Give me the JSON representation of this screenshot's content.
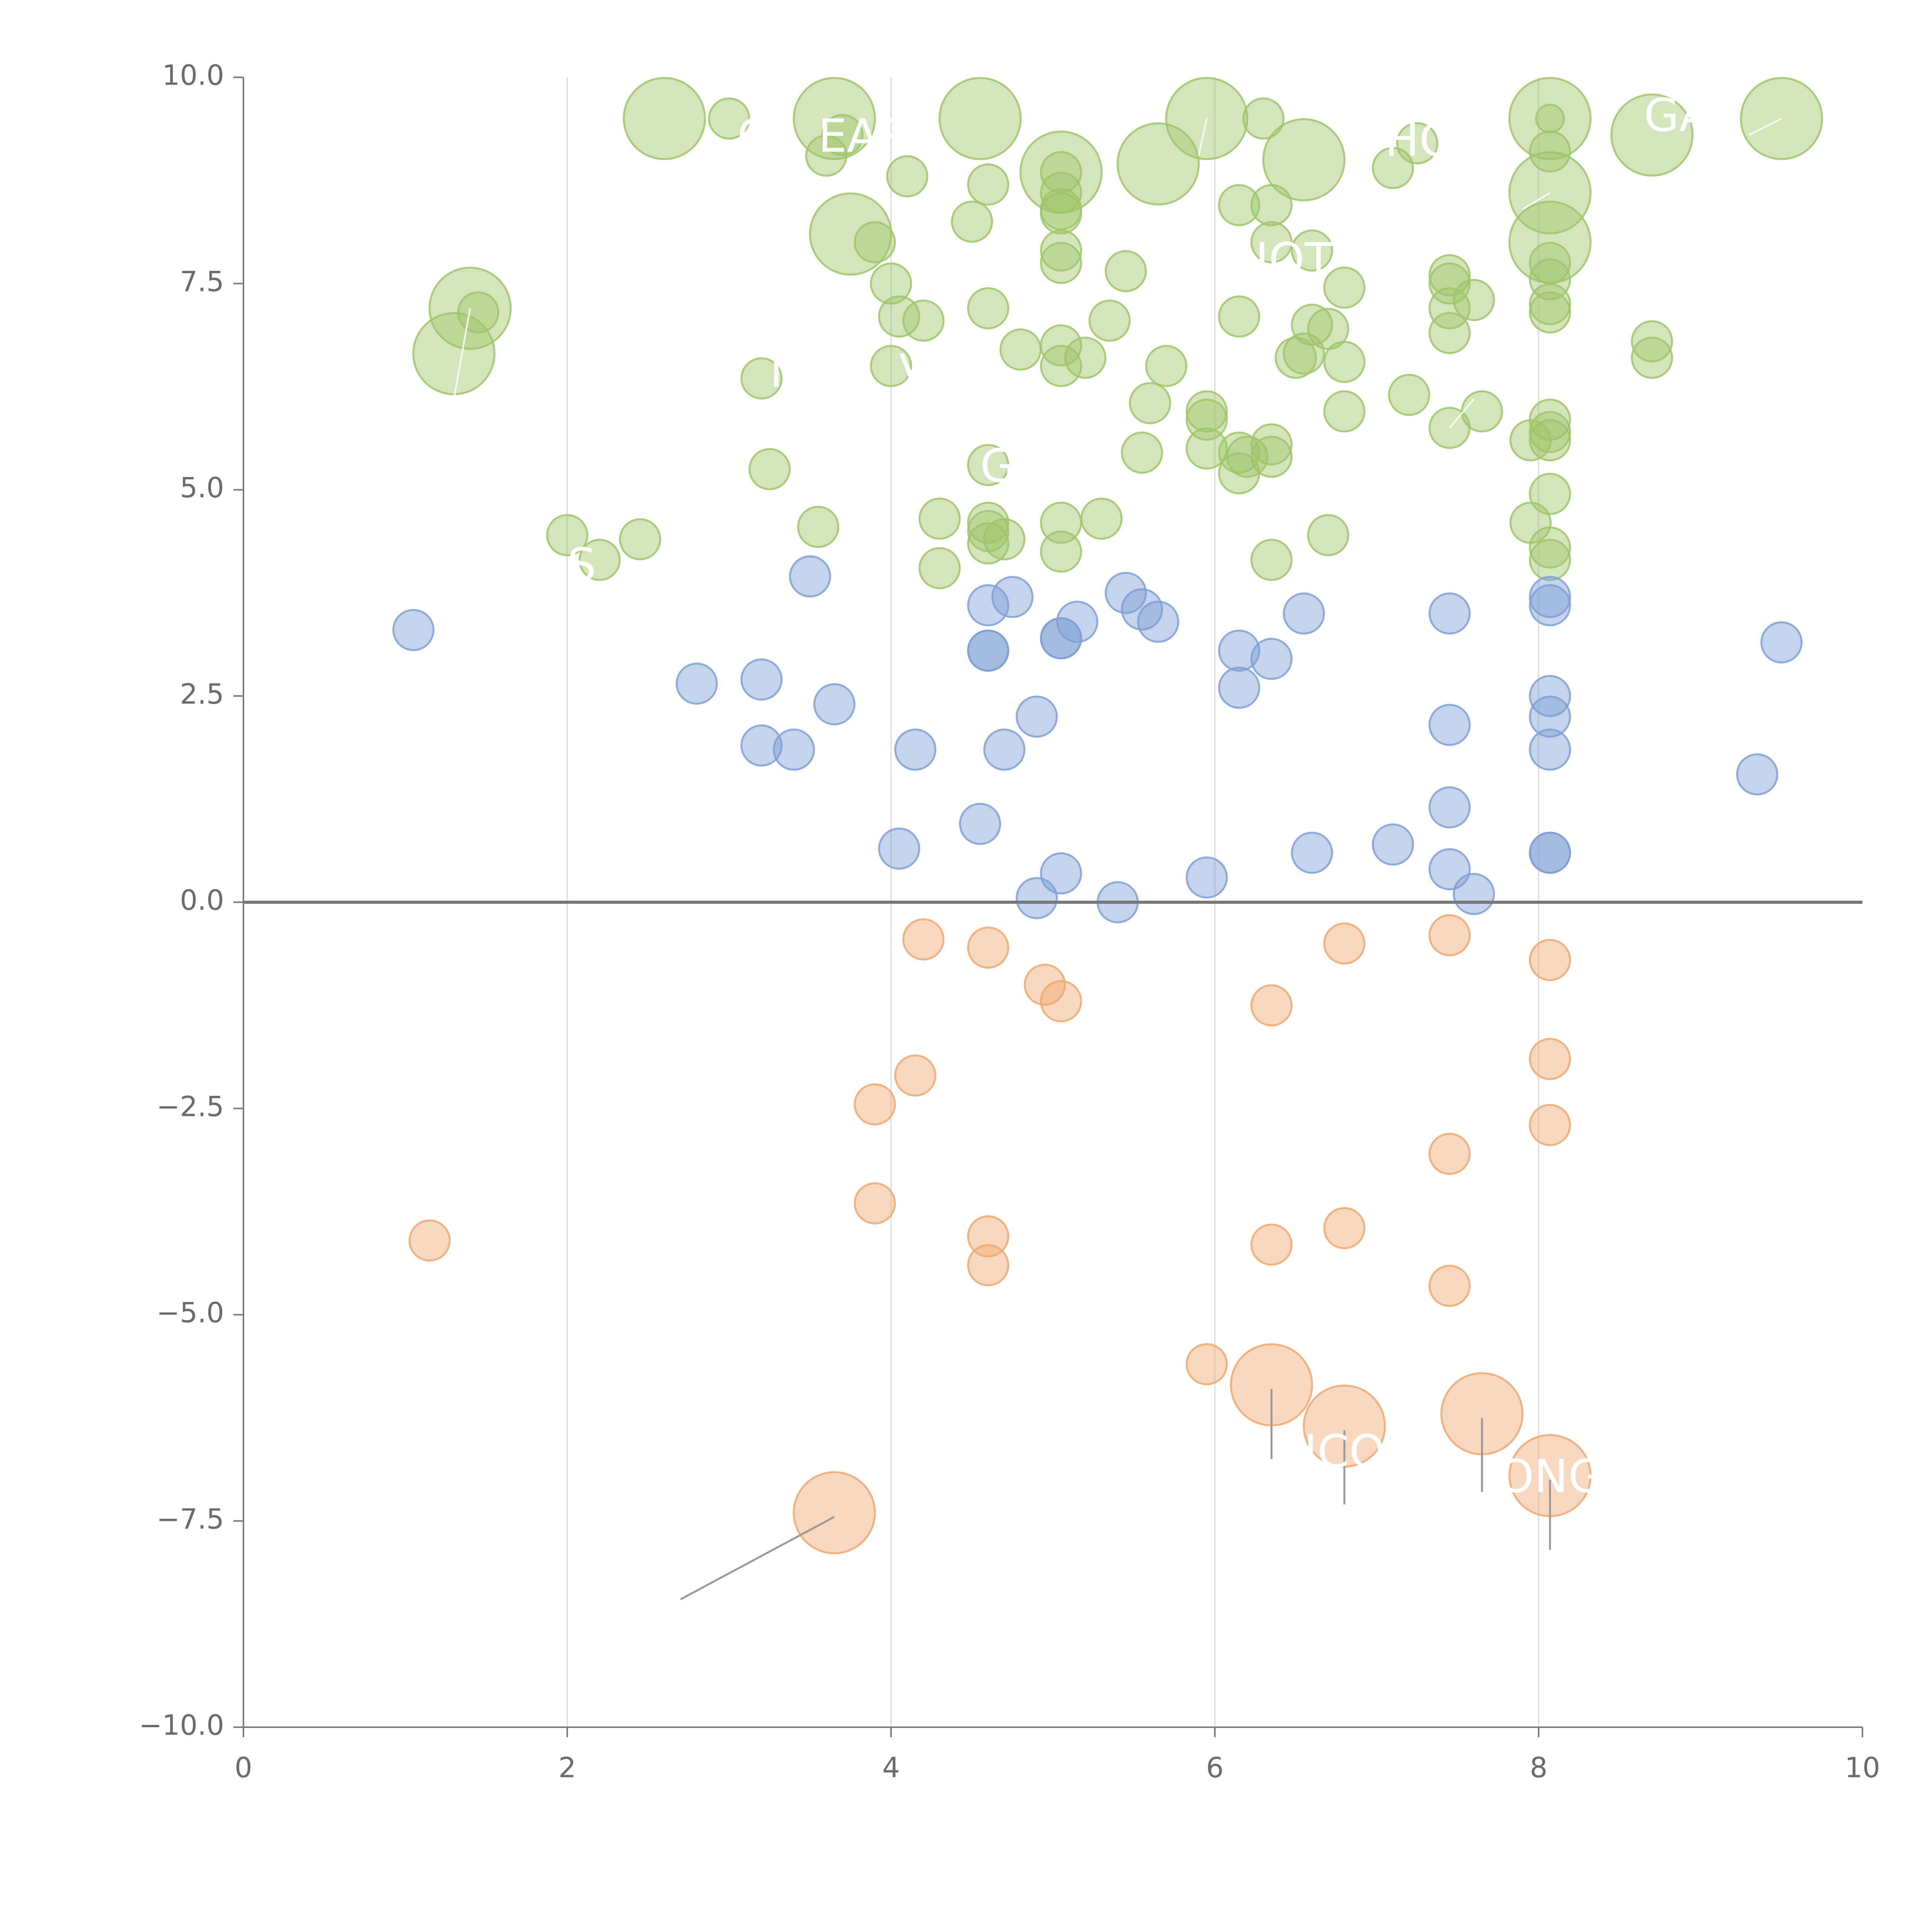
{
  "chart_data": {
    "type": "scatter",
    "title": "",
    "xlabel": "",
    "ylabel": "",
    "xlim": [
      0,
      10
    ],
    "ylim": [
      -10,
      10
    ],
    "x_ticks": [
      "0",
      "2",
      "4",
      "6",
      "8",
      "10"
    ],
    "y_ticks": [
      "10.0",
      "7.5",
      "5.0",
      "2.5",
      "0.0",
      "−2.5",
      "−5.0",
      "−7.5",
      "−10.0"
    ],
    "grid": "vertical",
    "reference_line_y": 0,
    "colors": {
      "positive_high": "#9fc56a",
      "positive_low": "#7fa0d4",
      "negative": "#f0a870"
    },
    "series": [
      {
        "color_key": "positive_high",
        "points": [
          [
            2.6,
            9.5,
            2
          ],
          [
            3.0,
            9.5,
            1
          ],
          [
            3.65,
            9.5,
            2
          ],
          [
            4.55,
            9.5,
            2
          ],
          [
            5.95,
            9.5,
            2
          ],
          [
            6.3,
            9.5,
            1
          ],
          [
            8.07,
            9.5,
            2
          ],
          [
            8.07,
            9.5,
            0
          ],
          [
            9.5,
            9.5,
            2
          ],
          [
            3.6,
            9.05,
            1
          ],
          [
            3.7,
            9.3,
            1
          ],
          [
            6.55,
            9.0,
            2
          ],
          [
            7.25,
            9.2,
            1
          ],
          [
            8.7,
            9.3,
            2
          ],
          [
            5.65,
            8.95,
            2
          ],
          [
            5.05,
            8.85,
            2
          ],
          [
            5.05,
            8.85,
            1
          ],
          [
            4.1,
            8.8,
            1
          ],
          [
            4.6,
            8.7,
            1
          ],
          [
            7.1,
            8.9,
            1
          ],
          [
            8.07,
            9.1,
            1
          ],
          [
            8.07,
            8.6,
            2
          ],
          [
            5.05,
            8.6,
            1
          ],
          [
            6.15,
            8.45,
            1
          ],
          [
            6.35,
            8.45,
            1
          ],
          [
            4.5,
            8.25,
            1
          ],
          [
            5.05,
            8.4,
            1
          ],
          [
            5.05,
            8.35,
            1
          ],
          [
            3.75,
            8.1,
            2
          ],
          [
            3.9,
            8.0,
            1
          ],
          [
            6.35,
            8.0,
            1
          ],
          [
            8.07,
            8.0,
            2
          ],
          [
            5.05,
            7.9,
            1
          ],
          [
            6.6,
            7.9,
            1
          ],
          [
            5.05,
            7.75,
            1
          ],
          [
            5.45,
            7.65,
            1
          ],
          [
            7.45,
            7.6,
            1
          ],
          [
            8.07,
            7.75,
            1
          ],
          [
            4.0,
            7.5,
            1
          ],
          [
            7.45,
            7.5,
            1
          ],
          [
            8.07,
            7.55,
            1
          ],
          [
            6.8,
            7.45,
            1
          ],
          [
            7.45,
            7.2,
            1
          ],
          [
            7.6,
            7.3,
            1
          ],
          [
            8.07,
            7.25,
            1
          ],
          [
            1.4,
            7.2,
            2
          ],
          [
            1.45,
            7.15,
            1
          ],
          [
            4.6,
            7.2,
            1
          ],
          [
            4.05,
            7.1,
            1
          ],
          [
            4.2,
            7.05,
            1
          ],
          [
            5.35,
            7.05,
            1
          ],
          [
            6.15,
            7.1,
            1
          ],
          [
            6.6,
            7.0,
            1
          ],
          [
            8.07,
            7.15,
            1
          ],
          [
            6.7,
            6.95,
            1
          ],
          [
            7.45,
            6.9,
            1
          ],
          [
            5.05,
            6.75,
            1
          ],
          [
            4.8,
            6.7,
            1
          ],
          [
            8.7,
            6.8,
            1
          ],
          [
            1.3,
            6.65,
            2
          ],
          [
            5.2,
            6.6,
            1
          ],
          [
            6.5,
            6.6,
            1
          ],
          [
            6.55,
            6.65,
            1
          ],
          [
            6.8,
            6.55,
            1
          ],
          [
            8.7,
            6.6,
            1
          ],
          [
            4.0,
            6.5,
            1
          ],
          [
            5.05,
            6.5,
            1
          ],
          [
            5.7,
            6.5,
            1
          ],
          [
            3.2,
            6.35,
            1
          ],
          [
            7.2,
            6.15,
            1
          ],
          [
            5.6,
            6.05,
            1
          ],
          [
            7.65,
            5.95,
            1
          ],
          [
            5.95,
            5.95,
            1
          ],
          [
            6.8,
            5.95,
            1
          ],
          [
            5.95,
            5.85,
            1
          ],
          [
            8.07,
            5.85,
            1
          ],
          [
            7.45,
            5.75,
            1
          ],
          [
            8.07,
            5.7,
            1
          ],
          [
            7.95,
            5.6,
            1
          ],
          [
            8.07,
            5.6,
            1
          ],
          [
            6.35,
            5.55,
            1
          ],
          [
            5.95,
            5.5,
            1
          ],
          [
            5.55,
            5.45,
            1
          ],
          [
            6.15,
            5.45,
            1
          ],
          [
            6.2,
            5.4,
            1
          ],
          [
            6.35,
            5.4,
            1
          ],
          [
            4.6,
            5.3,
            1
          ],
          [
            3.25,
            5.25,
            1
          ],
          [
            6.15,
            5.2,
            1
          ],
          [
            8.07,
            4.95,
            1
          ],
          [
            7.95,
            4.6,
            1
          ],
          [
            4.3,
            4.65,
            1
          ],
          [
            5.05,
            4.6,
            1
          ],
          [
            5.3,
            4.65,
            1
          ],
          [
            4.6,
            4.6,
            1
          ],
          [
            3.55,
            4.55,
            1
          ],
          [
            4.6,
            4.5,
            1
          ],
          [
            2.0,
            4.45,
            1
          ],
          [
            2.45,
            4.4,
            1
          ],
          [
            4.6,
            4.35,
            1
          ],
          [
            4.7,
            4.4,
            1
          ],
          [
            6.7,
            4.45,
            1
          ],
          [
            8.07,
            4.3,
            1
          ],
          [
            5.05,
            4.25,
            1
          ],
          [
            2.2,
            4.15,
            1
          ],
          [
            6.35,
            4.15,
            1
          ],
          [
            8.07,
            4.15,
            1
          ],
          [
            4.3,
            4.05,
            1
          ]
        ]
      },
      {
        "color_key": "positive_low",
        "points": [
          [
            3.5,
            3.95,
            1
          ],
          [
            5.45,
            3.75,
            1
          ],
          [
            8.07,
            3.7,
            1
          ],
          [
            4.75,
            3.7,
            1
          ],
          [
            8.07,
            3.6,
            1
          ],
          [
            4.6,
            3.6,
            1
          ],
          [
            5.55,
            3.55,
            1
          ],
          [
            7.45,
            3.5,
            1
          ],
          [
            6.55,
            3.5,
            1
          ],
          [
            5.15,
            3.4,
            1
          ],
          [
            5.65,
            3.4,
            1
          ],
          [
            1.05,
            3.3,
            1
          ],
          [
            5.05,
            3.2,
            1
          ],
          [
            5.05,
            3.2,
            1
          ],
          [
            9.5,
            3.15,
            1
          ],
          [
            6.15,
            3.05,
            1
          ],
          [
            4.6,
            3.05,
            1
          ],
          [
            4.6,
            3.05,
            1
          ],
          [
            6.35,
            2.95,
            1
          ],
          [
            2.8,
            2.65,
            1
          ],
          [
            3.2,
            2.7,
            1
          ],
          [
            6.15,
            2.6,
            1
          ],
          [
            8.07,
            2.5,
            1
          ],
          [
            3.65,
            2.4,
            1
          ],
          [
            4.9,
            2.25,
            1
          ],
          [
            8.07,
            2.25,
            1
          ],
          [
            7.45,
            2.15,
            1
          ],
          [
            3.2,
            1.9,
            1
          ],
          [
            3.4,
            1.85,
            1
          ],
          [
            4.15,
            1.85,
            1
          ],
          [
            4.7,
            1.85,
            1
          ],
          [
            8.07,
            1.85,
            1
          ],
          [
            9.35,
            1.55,
            1
          ],
          [
            7.45,
            1.15,
            1
          ],
          [
            4.55,
            0.95,
            1
          ],
          [
            7.1,
            0.7,
            1
          ],
          [
            4.05,
            0.65,
            1
          ],
          [
            6.6,
            0.6,
            1
          ],
          [
            8.07,
            0.6,
            1
          ],
          [
            8.07,
            0.6,
            1
          ],
          [
            7.45,
            0.4,
            1
          ],
          [
            5.05,
            0.35,
            1
          ],
          [
            5.95,
            0.3,
            1
          ],
          [
            7.6,
            0.1,
            1
          ],
          [
            4.9,
            0.05,
            1
          ],
          [
            5.4,
            0.0,
            1
          ]
        ]
      },
      {
        "color_key": "negative",
        "points": [
          [
            7.45,
            -0.4,
            1
          ],
          [
            4.2,
            -0.45,
            1
          ],
          [
            6.8,
            -0.5,
            1
          ],
          [
            4.6,
            -0.55,
            1
          ],
          [
            8.07,
            -0.7,
            1
          ],
          [
            4.95,
            -1.0,
            1
          ],
          [
            5.05,
            -1.2,
            1
          ],
          [
            6.35,
            -1.25,
            1
          ],
          [
            8.07,
            -1.9,
            1
          ],
          [
            4.15,
            -2.1,
            1
          ],
          [
            3.9,
            -2.45,
            1
          ],
          [
            8.07,
            -2.7,
            1
          ],
          [
            7.45,
            -3.05,
            1
          ],
          [
            3.9,
            -3.65,
            1
          ],
          [
            6.8,
            -3.95,
            1
          ],
          [
            4.6,
            -4.05,
            1
          ],
          [
            1.15,
            -4.1,
            1
          ],
          [
            6.35,
            -4.15,
            1
          ],
          [
            4.6,
            -4.4,
            1
          ],
          [
            7.45,
            -4.65,
            1
          ],
          [
            5.95,
            -5.6,
            1
          ],
          [
            6.35,
            -5.85,
            2
          ],
          [
            7.65,
            -6.2,
            2
          ],
          [
            6.8,
            -6.35,
            2
          ],
          [
            8.07,
            -6.95,
            2
          ],
          [
            3.65,
            -7.4,
            2
          ]
        ]
      }
    ],
    "annotations": [
      {
        "text": "C",
        "x": 3.05,
        "y": 9.25
      },
      {
        "text": "EAR",
        "x": 3.55,
        "y": 9.25
      },
      {
        "text": "HO",
        "x": 7.05,
        "y": 9.2
      },
      {
        "text": "GA",
        "x": 8.65,
        "y": 9.5
      },
      {
        "text": "IOT",
        "x": 6.25,
        "y": 7.75
      },
      {
        "text": "I",
        "x": 3.25,
        "y": 6.4
      },
      {
        "text": "V",
        "x": 4.05,
        "y": 6.4
      },
      {
        "text": "GI",
        "x": 4.55,
        "y": 5.25
      },
      {
        "text": "S",
        "x": 2.0,
        "y": 4.05
      },
      {
        "text": "ICO",
        "x": 6.55,
        "y": -6.7
      },
      {
        "text": "ONG",
        "x": 7.75,
        "y": -7.0
      }
    ]
  }
}
